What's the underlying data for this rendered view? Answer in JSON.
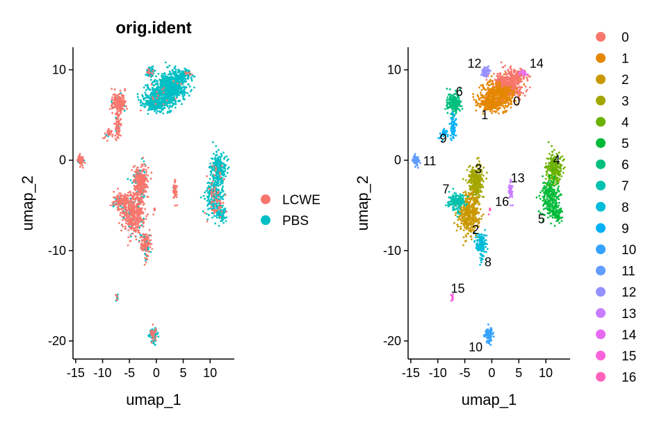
{
  "chart_data": [
    {
      "type": "scatter",
      "title": "orig.ident",
      "xlabel": "umap_1",
      "ylabel": "umap_2",
      "xlim": [
        -15.5,
        14.5
      ],
      "ylim": [
        -22,
        12.5
      ],
      "xticks": [
        -15,
        -10,
        -5,
        0,
        5,
        10
      ],
      "yticks": [
        10,
        0,
        -10,
        -20
      ],
      "legend_position": "right",
      "series": [
        {
          "name": "LCWE",
          "color": "#F8766D"
        },
        {
          "name": "PBS",
          "color": "#00BFC4"
        }
      ]
    },
    {
      "type": "scatter",
      "title": "",
      "xlabel": "umap_1",
      "ylabel": "umap_2",
      "xlim": [
        -15.5,
        14.5
      ],
      "ylim": [
        -22,
        12.5
      ],
      "xticks": [
        -15,
        -10,
        -5,
        0,
        5,
        10
      ],
      "yticks": [
        10,
        0,
        -10,
        -20
      ],
      "legend_position": "right",
      "clusters": [
        {
          "name": "0",
          "color": "#F8766D",
          "label_pos": [
            4.6,
            6.5
          ]
        },
        {
          "name": "1",
          "color": "#E58700",
          "label_pos": [
            -1.3,
            5.0
          ]
        },
        {
          "name": "2",
          "color": "#C99800",
          "label_pos": [
            -3.0,
            -7.7
          ]
        },
        {
          "name": "3",
          "color": "#A3A500",
          "label_pos": [
            -2.5,
            -1.0
          ]
        },
        {
          "name": "4",
          "color": "#6BB100",
          "label_pos": [
            12.0,
            0.0
          ]
        },
        {
          "name": "5",
          "color": "#00BA38",
          "label_pos": [
            9.2,
            -6.5
          ]
        },
        {
          "name": "6",
          "color": "#00BF7D",
          "label_pos": [
            -6.0,
            7.6
          ]
        },
        {
          "name": "7",
          "color": "#00C0AF",
          "label_pos": [
            -8.5,
            -3.2
          ]
        },
        {
          "name": "8",
          "color": "#00BCD8",
          "label_pos": [
            -0.7,
            -11.3
          ]
        },
        {
          "name": "9",
          "color": "#00B0F6",
          "label_pos": [
            -9.0,
            2.4
          ]
        },
        {
          "name": "10",
          "color": "#35A2FF",
          "label_pos": [
            -3.0,
            -20.7
          ]
        },
        {
          "name": "11",
          "color": "#619CFF",
          "label_pos": [
            -11.5,
            -0.1
          ]
        },
        {
          "name": "12",
          "color": "#9590FF",
          "label_pos": [
            -3.2,
            10.7
          ]
        },
        {
          "name": "13",
          "color": "#C77CFF",
          "label_pos": [
            4.8,
            -2.0
          ]
        },
        {
          "name": "14",
          "color": "#E76BF3",
          "label_pos": [
            8.3,
            10.7
          ]
        },
        {
          "name": "15",
          "color": "#FA62DB",
          "label_pos": [
            -6.3,
            -14.2
          ]
        },
        {
          "name": "16",
          "color": "#FF62BC",
          "label_pos": [
            1.9,
            -4.6
          ]
        }
      ]
    }
  ]
}
